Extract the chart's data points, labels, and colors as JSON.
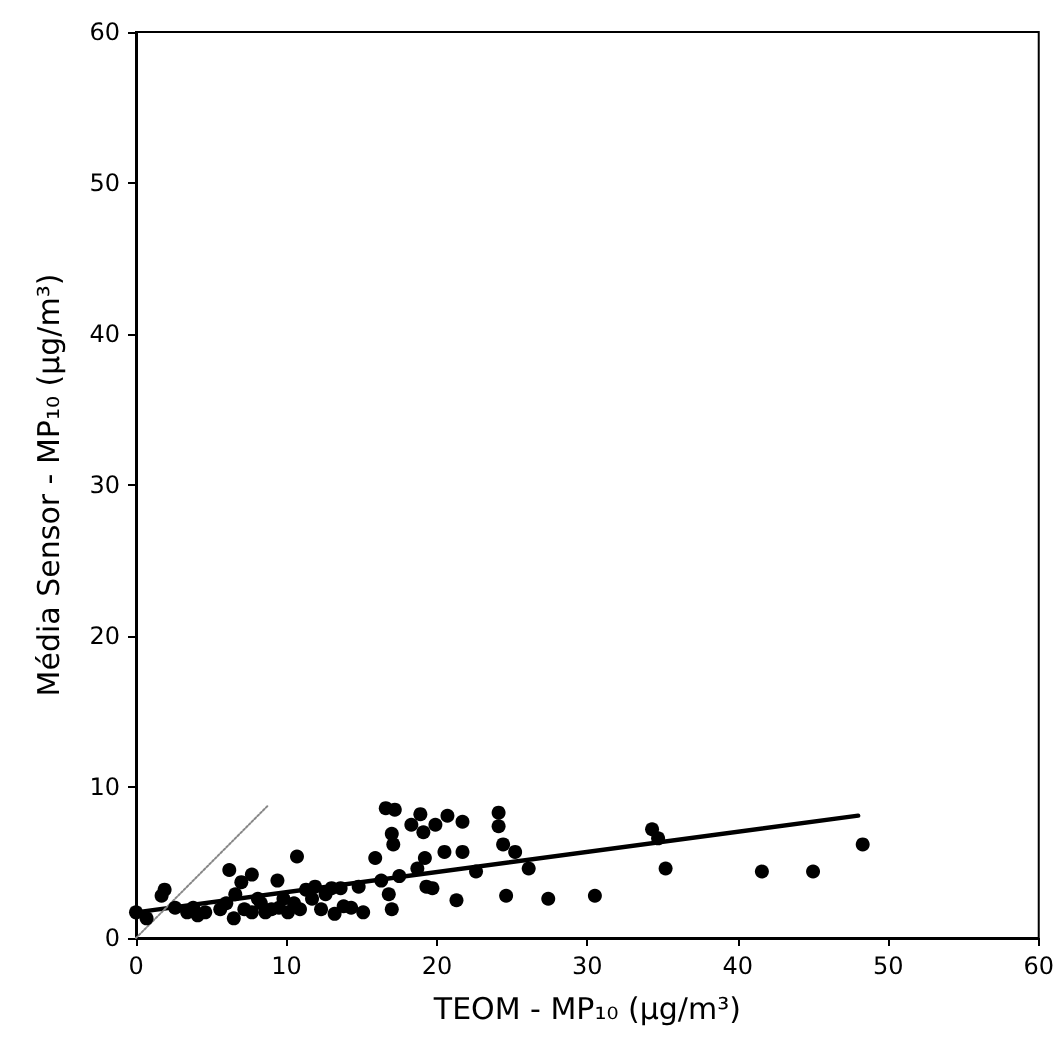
{
  "chart_data": {
    "type": "scatter",
    "xlabel": "TEOM - MP₁₀ (μg/m³)",
    "ylabel": "Média Sensor - MP₁₀ (μg/m³)",
    "xlim": [
      0,
      60
    ],
    "ylim": [
      0,
      60
    ],
    "xticks": [
      0,
      10,
      20,
      30,
      40,
      50,
      60
    ],
    "yticks": [
      0,
      10,
      20,
      30,
      40,
      50,
      60
    ],
    "grid": false,
    "series": [
      {
        "color": "#000000",
        "marker": "circle",
        "x": [
          0,
          0.7,
          1.7,
          1.9,
          2.6,
          3.4,
          3.8,
          4.1,
          4.6,
          5.6,
          6.0,
          6.2,
          6.5,
          6.6,
          7.0,
          7.2,
          7.7,
          7.7,
          8.1,
          8.3,
          8.6,
          9.0,
          9.4,
          9.5,
          9.8,
          10.1,
          10.5,
          10.7,
          10.9,
          11.3,
          11.7,
          11.9,
          12.3,
          12.6,
          13.0,
          13.2,
          13.6,
          13.8,
          14.3,
          14.8,
          15.1,
          15.9,
          16.3,
          16.6,
          16.8,
          17.0,
          17.1,
          17.0,
          17.2,
          17.5,
          18.3,
          18.7,
          18.9,
          19.1,
          19.2,
          19.3,
          19.7,
          19.9,
          20.5,
          20.7,
          21.3,
          21.7,
          21.7,
          22.6,
          24.1,
          24.1,
          24.4,
          24.6,
          25.2,
          26.1,
          27.4,
          30.5,
          34.3,
          34.7,
          35.2,
          41.6,
          45.0,
          48.3
        ],
        "values": [
          1.7,
          1.3,
          2.8,
          3.2,
          2.0,
          1.7,
          2.0,
          1.5,
          1.7,
          1.9,
          2.3,
          4.5,
          1.3,
          2.9,
          3.7,
          1.9,
          4.2,
          1.7,
          2.6,
          2.3,
          1.7,
          1.9,
          3.8,
          2.0,
          2.6,
          1.7,
          2.3,
          5.4,
          1.9,
          3.2,
          2.6,
          3.4,
          1.9,
          2.9,
          3.3,
          1.6,
          3.3,
          2.1,
          2.0,
          3.4,
          1.7,
          5.3,
          3.8,
          8.6,
          2.9,
          6.9,
          6.2,
          1.9,
          8.5,
          4.1,
          7.5,
          4.6,
          8.2,
          7.0,
          5.3,
          3.4,
          3.3,
          7.5,
          5.7,
          8.1,
          2.5,
          7.7,
          5.7,
          4.4,
          8.3,
          7.4,
          6.2,
          2.8,
          5.7,
          4.6,
          2.6,
          2.8,
          7.2,
          6.6,
          4.6,
          4.4,
          4.4,
          6.2
        ]
      },
      {
        "type": "line",
        "color": "#000000",
        "marker": "none",
        "line_style": "solid",
        "x": [
          0,
          48
        ],
        "values": [
          1.7,
          8.1
        ]
      },
      {
        "type": "line",
        "color": "#888888",
        "marker": "none",
        "line_style": "dotted",
        "x": [
          0,
          8.8
        ],
        "values": [
          0,
          8.8
        ]
      }
    ]
  }
}
